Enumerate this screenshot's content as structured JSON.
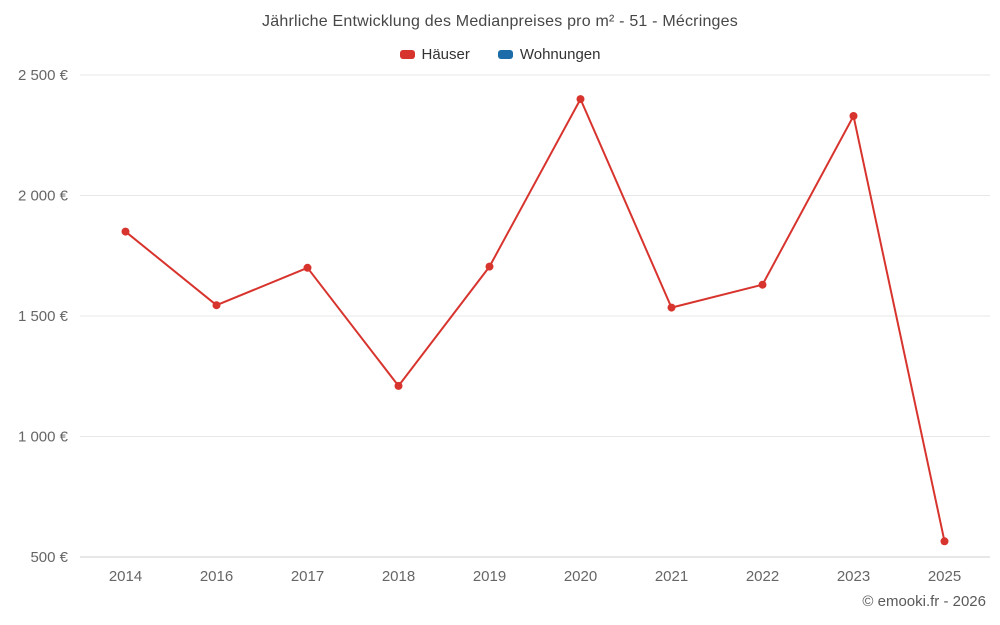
{
  "title": "Jährliche Entwicklung des Medianpreises pro m² - 51 - Mécringes",
  "legend": [
    {
      "label": "Häuser",
      "color": "#d8342e"
    },
    {
      "label": "Wohnungen",
      "color": "#1b6ca8"
    }
  ],
  "footer": {
    "copyright": "© emooki.fr - 2026"
  },
  "chart_data": {
    "type": "line",
    "title": "Jährliche Entwicklung des Medianpreises pro m² - 51 - Mécringes",
    "categories": [
      "2014",
      "2016",
      "2017",
      "2018",
      "2019",
      "2020",
      "2021",
      "2022",
      "2023",
      "2025"
    ],
    "series": [
      {
        "name": "Häuser",
        "color": "#d8342e",
        "values": [
          1850,
          1545,
          1700,
          1210,
          1705,
          2400,
          1535,
          1630,
          2330,
          565
        ]
      },
      {
        "name": "Wohnungen",
        "color": "#1b6ca8",
        "values": []
      }
    ],
    "xlabel": "",
    "ylabel": "",
    "yticks": [
      500,
      1000,
      1500,
      2000,
      2500
    ],
    "ytick_labels": [
      "500 €",
      "1 000 €",
      "1 500 €",
      "2 000 €",
      "2 500 €"
    ],
    "ylim": [
      500,
      2500
    ],
    "grid": "horizontal",
    "legend_position": "top",
    "marker": "circle"
  }
}
